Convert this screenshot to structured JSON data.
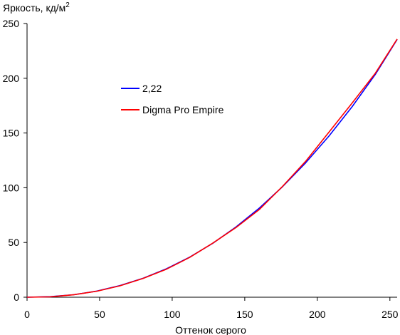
{
  "chart_data": {
    "type": "line",
    "ylabel": "Яркость, кд/м",
    "ylabel_sup": "2",
    "xlabel": "Оттенок серого",
    "xlim": [
      0,
      255
    ],
    "ylim": [
      0,
      250
    ],
    "xticks": [
      "0",
      "50",
      "100",
      "150",
      "200",
      "250"
    ],
    "yticks": [
      "0",
      "50",
      "100",
      "150",
      "200",
      "250"
    ],
    "grid": false,
    "legend_position": "upper-left-inside",
    "series": [
      {
        "name": "2,22",
        "color": "#0000ff",
        "x": [
          0,
          16,
          32,
          48,
          64,
          80,
          96,
          112,
          128,
          144,
          160,
          176,
          192,
          208,
          224,
          240,
          255
        ],
        "y": [
          0,
          0.5,
          2.3,
          5.6,
          10.6,
          17.3,
          26.0,
          36.6,
          49.3,
          64.2,
          81.4,
          100.9,
          122.8,
          147.2,
          174.1,
          203.6,
          235.5
        ]
      },
      {
        "name": "Digma Pro Empire",
        "color": "#ff0000",
        "x": [
          0,
          16,
          32,
          48,
          64,
          80,
          96,
          112,
          128,
          144,
          160,
          176,
          192,
          208,
          224,
          240,
          255
        ],
        "y": [
          0,
          0.4,
          2.2,
          5.5,
          10.4,
          17.2,
          25.6,
          36.3,
          49.4,
          63.7,
          80.1,
          101.2,
          124.2,
          150.8,
          177.4,
          204.7,
          235.8
        ]
      }
    ]
  }
}
